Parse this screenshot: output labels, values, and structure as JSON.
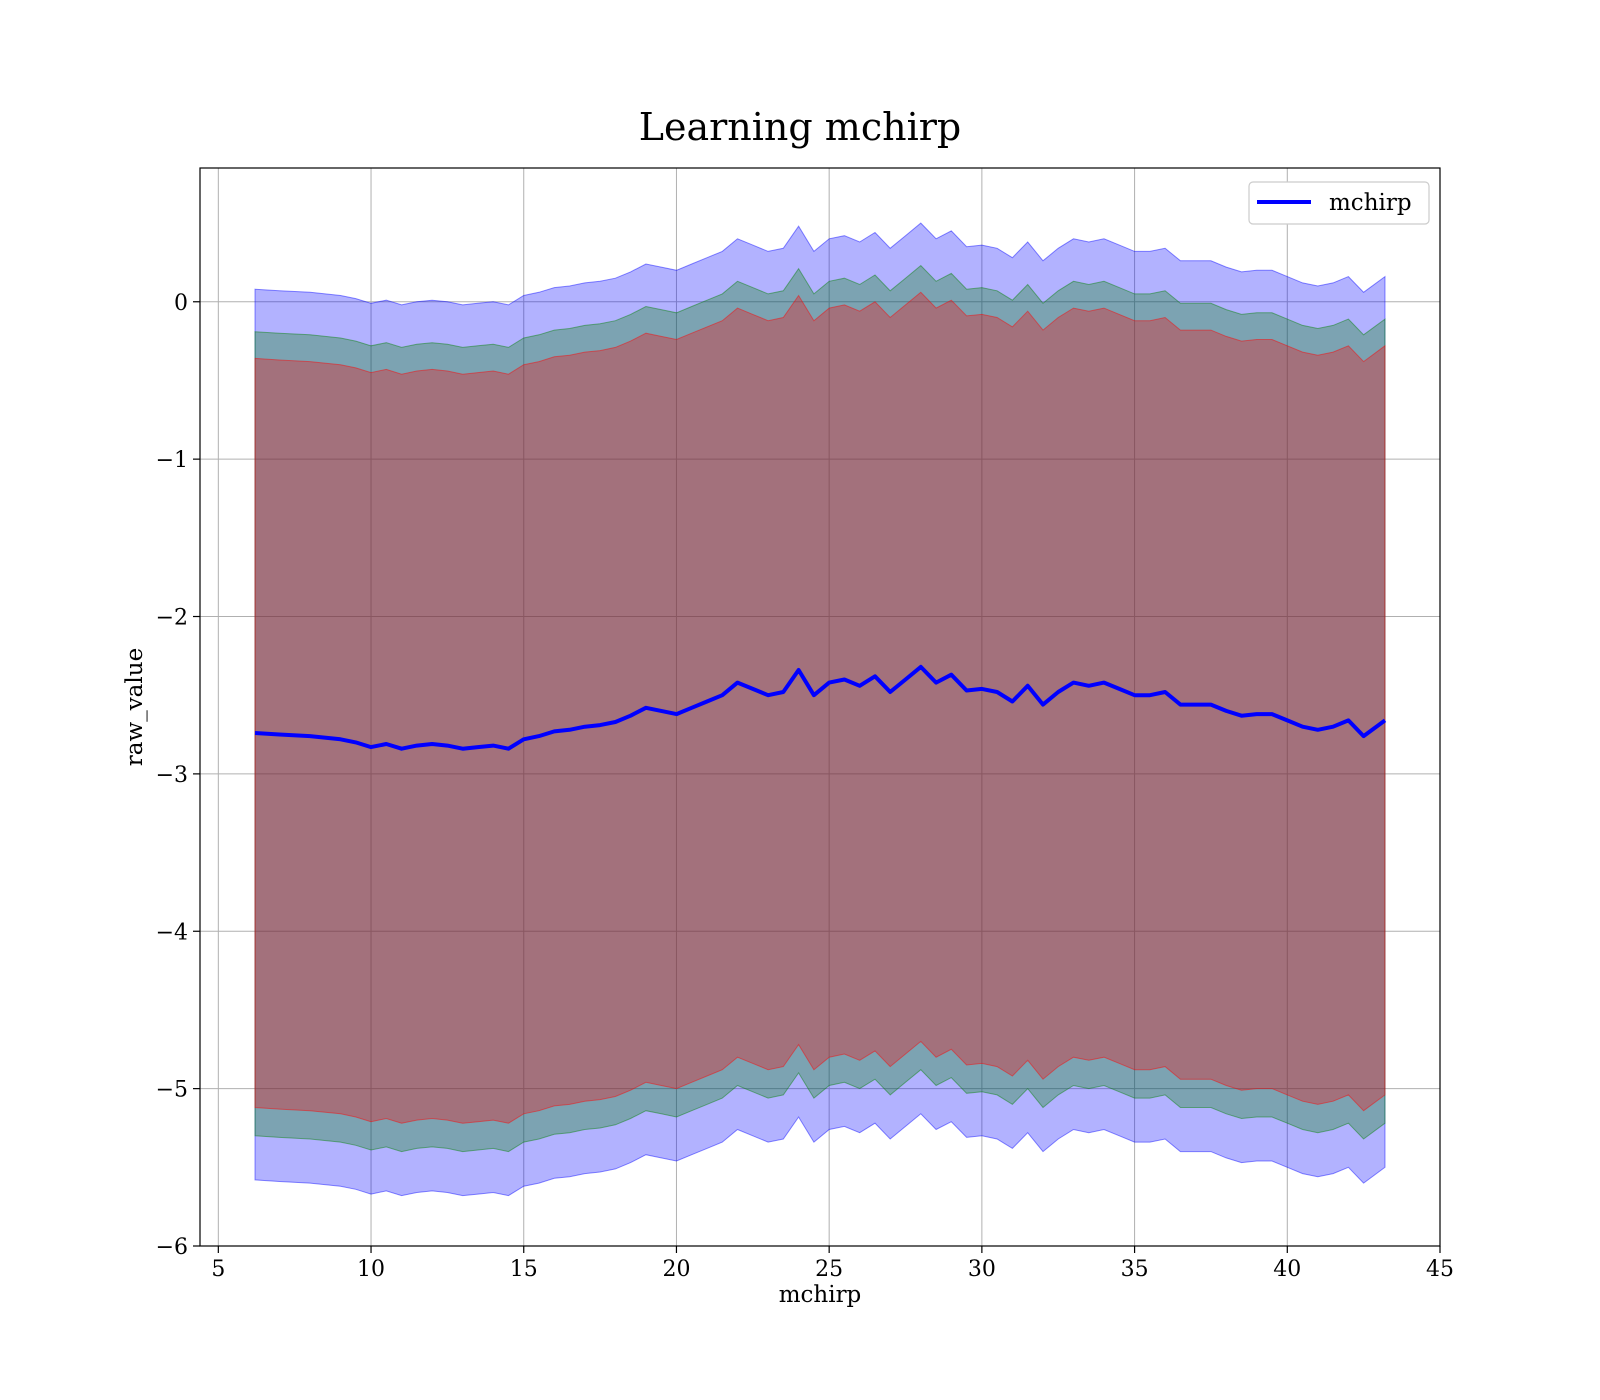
{
  "chart_data": {
    "type": "area",
    "title": "Learning mchirp",
    "xlabel": "mchirp",
    "ylabel": "raw_value",
    "xlim": [
      4.4,
      45
    ],
    "ylim": [
      -6,
      0.85
    ],
    "xticks": [
      5,
      10,
      15,
      20,
      25,
      30,
      35,
      40,
      45
    ],
    "xtick_labels": [
      "5",
      "10",
      "15",
      "20",
      "25",
      "30",
      "35",
      "40",
      "45"
    ],
    "yticks": [
      -6,
      -5,
      -4,
      -3,
      -2,
      -1,
      0
    ],
    "ytick_labels": [
      "−6",
      "−5",
      "−4",
      "−3",
      "−2",
      "−1",
      "0"
    ],
    "grid": true,
    "legend": {
      "position": "top-right",
      "entries": [
        {
          "label": "mchirp",
          "color": "#0000ff"
        }
      ]
    },
    "x": [
      6.2,
      7.0,
      8.0,
      9.0,
      9.5,
      10.0,
      10.5,
      11.0,
      11.5,
      12.0,
      12.5,
      13.0,
      13.5,
      14.0,
      14.5,
      15.0,
      15.5,
      16.0,
      16.5,
      17.0,
      17.5,
      18.0,
      18.5,
      19.0,
      19.5,
      20.0,
      20.5,
      21.0,
      21.5,
      22.0,
      22.5,
      23.0,
      23.5,
      24.0,
      24.5,
      25.0,
      25.5,
      26.0,
      26.5,
      27.0,
      27.5,
      28.0,
      28.5,
      29.0,
      29.5,
      30.0,
      30.5,
      31.0,
      31.5,
      32.0,
      32.5,
      33.0,
      33.5,
      34.0,
      34.5,
      35.0,
      35.5,
      36.0,
      36.5,
      37.0,
      37.5,
      38.0,
      38.5,
      39.0,
      39.5,
      40.0,
      40.5,
      41.0,
      41.5,
      42.0,
      42.5,
      43.2
    ],
    "series": [
      {
        "name": "mchirp",
        "color": "#0000ff",
        "values": [
          -2.74,
          -2.75,
          -2.76,
          -2.78,
          -2.8,
          -2.83,
          -2.81,
          -2.84,
          -2.82,
          -2.81,
          -2.82,
          -2.84,
          -2.83,
          -2.82,
          -2.84,
          -2.78,
          -2.76,
          -2.73,
          -2.72,
          -2.7,
          -2.69,
          -2.67,
          -2.63,
          -2.58,
          -2.6,
          -2.62,
          -2.58,
          -2.54,
          -2.5,
          -2.42,
          -2.46,
          -2.5,
          -2.48,
          -2.34,
          -2.5,
          -2.42,
          -2.4,
          -2.44,
          -2.38,
          -2.48,
          -2.4,
          -2.32,
          -2.42,
          -2.37,
          -2.47,
          -2.46,
          -2.48,
          -2.54,
          -2.44,
          -2.56,
          -2.48,
          -2.42,
          -2.44,
          -2.42,
          -2.46,
          -2.5,
          -2.5,
          -2.48,
          -2.56,
          -2.56,
          -2.56,
          -2.6,
          -2.63,
          -2.62,
          -2.62,
          -2.66,
          -2.7,
          -2.72,
          -2.7,
          -2.66,
          -2.76,
          -2.66
        ]
      }
    ],
    "bands": [
      {
        "color": "#0000ff",
        "opacity": 0.3,
        "offset_upper": 2.82,
        "offset_lower": -2.84
      },
      {
        "color": "#008000",
        "opacity": 0.3,
        "offset_upper": 2.55,
        "offset_lower": -2.56
      },
      {
        "color": "#ff0000",
        "opacity": 0.3,
        "offset_upper": 2.38,
        "offset_lower": -2.38
      }
    ]
  }
}
